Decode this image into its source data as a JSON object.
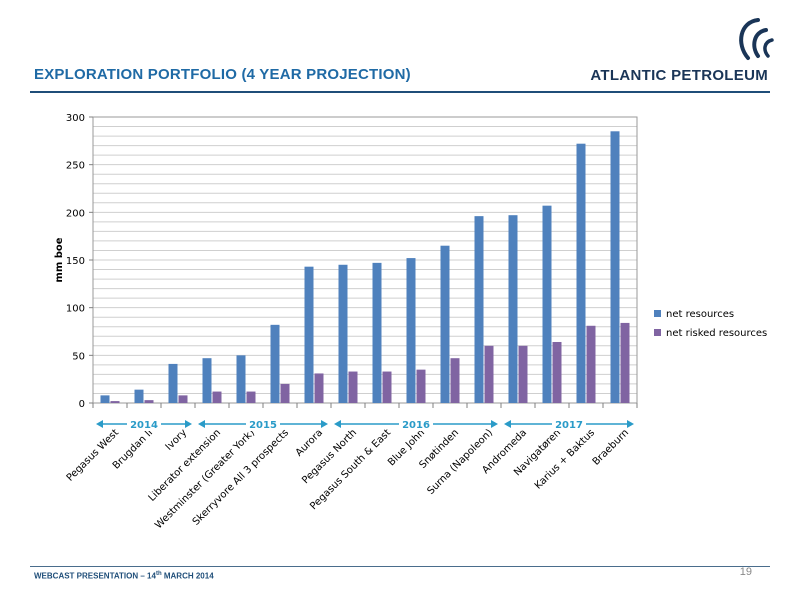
{
  "header": {
    "title": "EXPLORATION PORTFOLIO (4 YEAR PROJECTION)",
    "logo_text": "ATLANTIC PETROLEUM"
  },
  "footer": {
    "left_main": "WEBCAST PRESENTATION – 14",
    "left_sup": "th",
    "left_tail": " MARCH 2014",
    "page": "19"
  },
  "colors": {
    "title": "#1f6aa5",
    "net_resources": "#4f81bd",
    "net_risked_resources": "#8064a2",
    "year_arrow": "#2a9bc8"
  },
  "chart_data": {
    "type": "bar",
    "ylabel": "mm boe",
    "xlabel": "",
    "ylim": [
      0,
      300
    ],
    "yticks": [
      0,
      50,
      100,
      150,
      200,
      250,
      300
    ],
    "minor_gridlines_every": 10,
    "legend_position": "right",
    "categories": [
      "Pegasus West",
      "Brugdan II",
      "Ivory",
      "Liberator extension",
      "Westminster (Greater York)",
      "Skerryvore All 3 prospects",
      "Aurora",
      "Pegasus North",
      "Pegasus South & East",
      "Blue John",
      "Snøtinden",
      "Surna (Napoleon)",
      "Andromeda",
      "Navigatøren",
      "Karius + Baktus",
      "Braeburn"
    ],
    "series": [
      {
        "name": "net resources",
        "values": [
          8,
          14,
          41,
          47,
          50,
          82,
          143,
          145,
          147,
          152,
          165,
          196,
          197,
          207,
          272,
          285
        ]
      },
      {
        "name": "net risked resources",
        "values": [
          2,
          3,
          8,
          12,
          12,
          20,
          31,
          33,
          33,
          35,
          47,
          60,
          60,
          64,
          81,
          84
        ]
      }
    ],
    "year_groups": [
      {
        "label": "2014",
        "first": 0,
        "last": 2
      },
      {
        "label": "2015",
        "first": 3,
        "last": 6
      },
      {
        "label": "2016",
        "first": 7,
        "last": 11
      },
      {
        "label": "2017",
        "first": 12,
        "last": 15
      }
    ]
  }
}
